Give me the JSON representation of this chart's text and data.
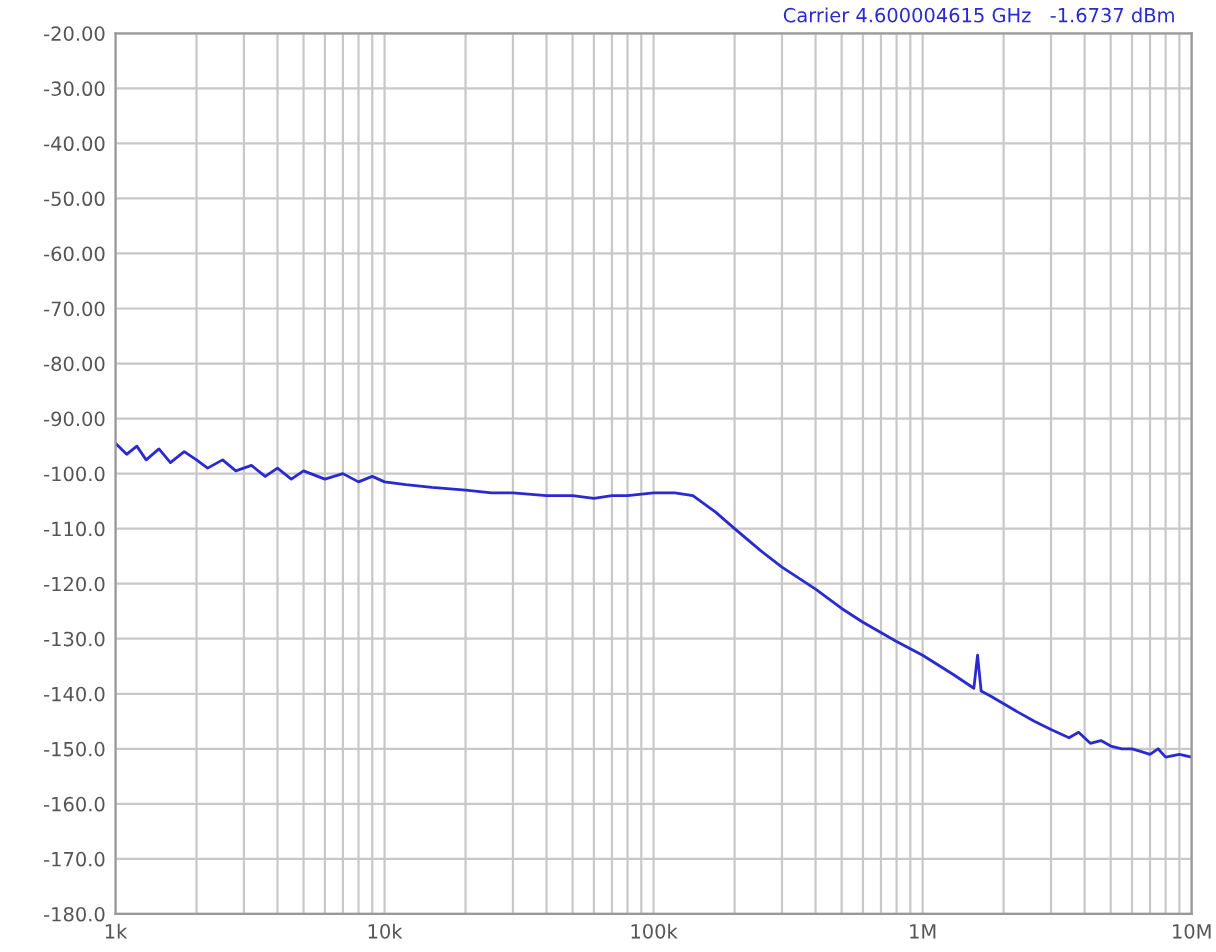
{
  "chart_data": {
    "type": "line",
    "log": "x",
    "x": [
      1000,
      1100,
      1200,
      1300,
      1450,
      1600,
      1800,
      2000,
      2200,
      2500,
      2800,
      3200,
      3600,
      4000,
      4500,
      5000,
      6000,
      7000,
      8000,
      9000,
      10000,
      12000,
      15000,
      20000,
      25000,
      30000,
      40000,
      50000,
      60000,
      70000,
      80000,
      100000,
      120000,
      140000,
      170000,
      200000,
      250000,
      300000,
      400000,
      500000,
      600000,
      800000,
      1000000,
      1300000,
      1550000,
      1600000,
      1650000,
      1800000,
      2200000,
      2600000,
      3000000,
      3500000,
      3800000,
      4200000,
      4600000,
      5000000,
      5500000,
      6000000,
      6500000,
      7000000,
      7500000,
      8000000,
      9000000,
      10000000
    ],
    "series": [
      {
        "color": "#2a2ad0",
        "values": [
          -94.5,
          -96.5,
          -95,
          -97.5,
          -95.5,
          -98,
          -96,
          -97.5,
          -99,
          -97.5,
          -99.5,
          -98.5,
          -100.5,
          -99,
          -101,
          -99.5,
          -101,
          -100,
          -101.5,
          -100.5,
          -101.5,
          -102,
          -102.5,
          -103,
          -103.5,
          -103.5,
          -104,
          -104,
          -104.5,
          -104,
          -104,
          -103.5,
          -103.5,
          -104,
          -107,
          -110,
          -114,
          -117,
          -121,
          -124.5,
          -127,
          -130.5,
          -133,
          -136.5,
          -139,
          -133,
          -139.5,
          -140.5,
          -143,
          -145,
          -146.5,
          -148,
          -147,
          -149,
          -148.5,
          -149.5,
          -150,
          -150,
          -150.5,
          -151,
          -150,
          -151.5,
          -151,
          -151.5
        ]
      }
    ],
    "xlim": [
      1000,
      10000000
    ],
    "xticks": [
      {
        "value": 1000,
        "label": "1k"
      },
      {
        "value": 10000,
        "label": "10k"
      },
      {
        "value": 100000,
        "label": "100k"
      },
      {
        "value": 1000000,
        "label": "1M"
      },
      {
        "value": 10000000,
        "label": "10M"
      }
    ],
    "ylim": [
      -180,
      -20
    ],
    "yticks": [
      {
        "value": -20,
        "label": "-20.00"
      },
      {
        "value": -30,
        "label": "-30.00"
      },
      {
        "value": -40,
        "label": "-40.00"
      },
      {
        "value": -50,
        "label": "-50.00"
      },
      {
        "value": -60,
        "label": "-60.00"
      },
      {
        "value": -70,
        "label": "-70.00"
      },
      {
        "value": -80,
        "label": "-80.00"
      },
      {
        "value": -90,
        "label": "-90.00"
      },
      {
        "value": -100,
        "label": "-100.0"
      },
      {
        "value": -110,
        "label": "-110.0"
      },
      {
        "value": -120,
        "label": "-120.0"
      },
      {
        "value": -130,
        "label": "-130.0"
      },
      {
        "value": -140,
        "label": "-140.0"
      },
      {
        "value": -150,
        "label": "-150.0"
      },
      {
        "value": -160,
        "label": "-160.0"
      },
      {
        "value": -170,
        "label": "-170.0"
      },
      {
        "value": -180,
        "label": "-180.0"
      }
    ],
    "grid": true,
    "annotations": [
      "Carrier 4.600004615 GHz",
      "-1.6737 dBm"
    ]
  }
}
